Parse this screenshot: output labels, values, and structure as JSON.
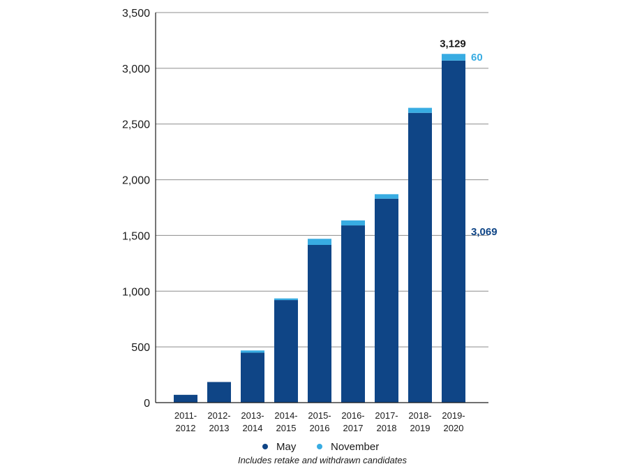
{
  "chart_data": {
    "type": "bar",
    "stacked": true,
    "categories": [
      [
        "2011-",
        "2012"
      ],
      [
        "2012-",
        "2013"
      ],
      [
        "2013-",
        "2014"
      ],
      [
        "2014-",
        "2015"
      ],
      [
        "2015-",
        "2016"
      ],
      [
        "2016-",
        "2017"
      ],
      [
        "2017-",
        "2018"
      ],
      [
        "2018-",
        "2019"
      ],
      [
        "2019-",
        "2020"
      ]
    ],
    "series": [
      {
        "name": "May",
        "color": "#0f4586",
        "values": [
          70,
          185,
          448,
          920,
          1415,
          1590,
          1830,
          2600,
          3069
        ]
      },
      {
        "name": "November",
        "color": "#38ace2",
        "values": [
          0,
          0,
          20,
          15,
          55,
          45,
          40,
          45,
          60
        ]
      }
    ],
    "ylim": [
      0,
      3500
    ],
    "yticks": [
      0,
      500,
      1000,
      1500,
      2000,
      2500,
      3000,
      3500
    ],
    "ytick_labels": [
      "0",
      "500",
      "1,000",
      "1,500",
      "2,000",
      "2,500",
      "3,000",
      "3,500"
    ],
    "grid": true,
    "legend_position": "bottom",
    "annotations": {
      "total": "3,129",
      "november": "60",
      "may": "3,069"
    },
    "note": "Includes retake and withdrawn candidates"
  }
}
